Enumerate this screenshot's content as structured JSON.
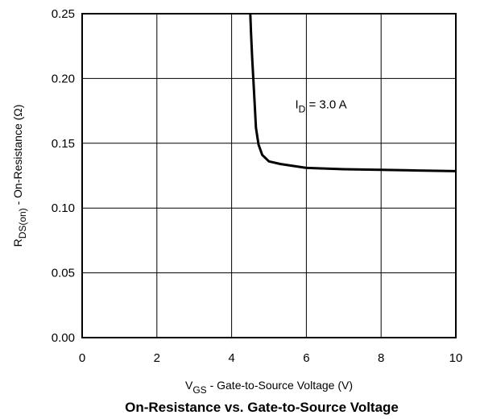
{
  "chart_data": {
    "type": "line",
    "title": "On-Resistance vs. Gate-to-Source Voltage",
    "xlabel": {
      "main": "V",
      "sub": "GS",
      "rest": " - Gate-to-Source Voltage (V)"
    },
    "ylabel": {
      "main": "R",
      "sub": "DS(on)",
      "rest": " - On-Resistance (Ω)"
    },
    "xlim": [
      0,
      10
    ],
    "ylim": [
      0,
      0.25
    ],
    "x_ticks": [
      "0",
      "2",
      "4",
      "6",
      "8",
      "10"
    ],
    "y_ticks": [
      "0.00",
      "0.05",
      "0.10",
      "0.15",
      "0.20",
      "0.25"
    ],
    "grid": true,
    "annotation": {
      "main": "I",
      "sub": "D",
      "rest": " = 3.0 A",
      "x": 5.7,
      "y": 0.18
    },
    "series": [
      {
        "x": [
          4.5,
          4.52,
          4.55,
          4.6,
          4.65,
          4.72,
          4.82,
          5.0,
          5.3,
          6.0,
          7.0,
          8.0,
          9.0,
          10.0
        ],
        "y": [
          0.25,
          0.235,
          0.216,
          0.19,
          0.162,
          0.149,
          0.141,
          0.136,
          0.134,
          0.131,
          0.13,
          0.1295,
          0.129,
          0.1285
        ]
      }
    ]
  }
}
